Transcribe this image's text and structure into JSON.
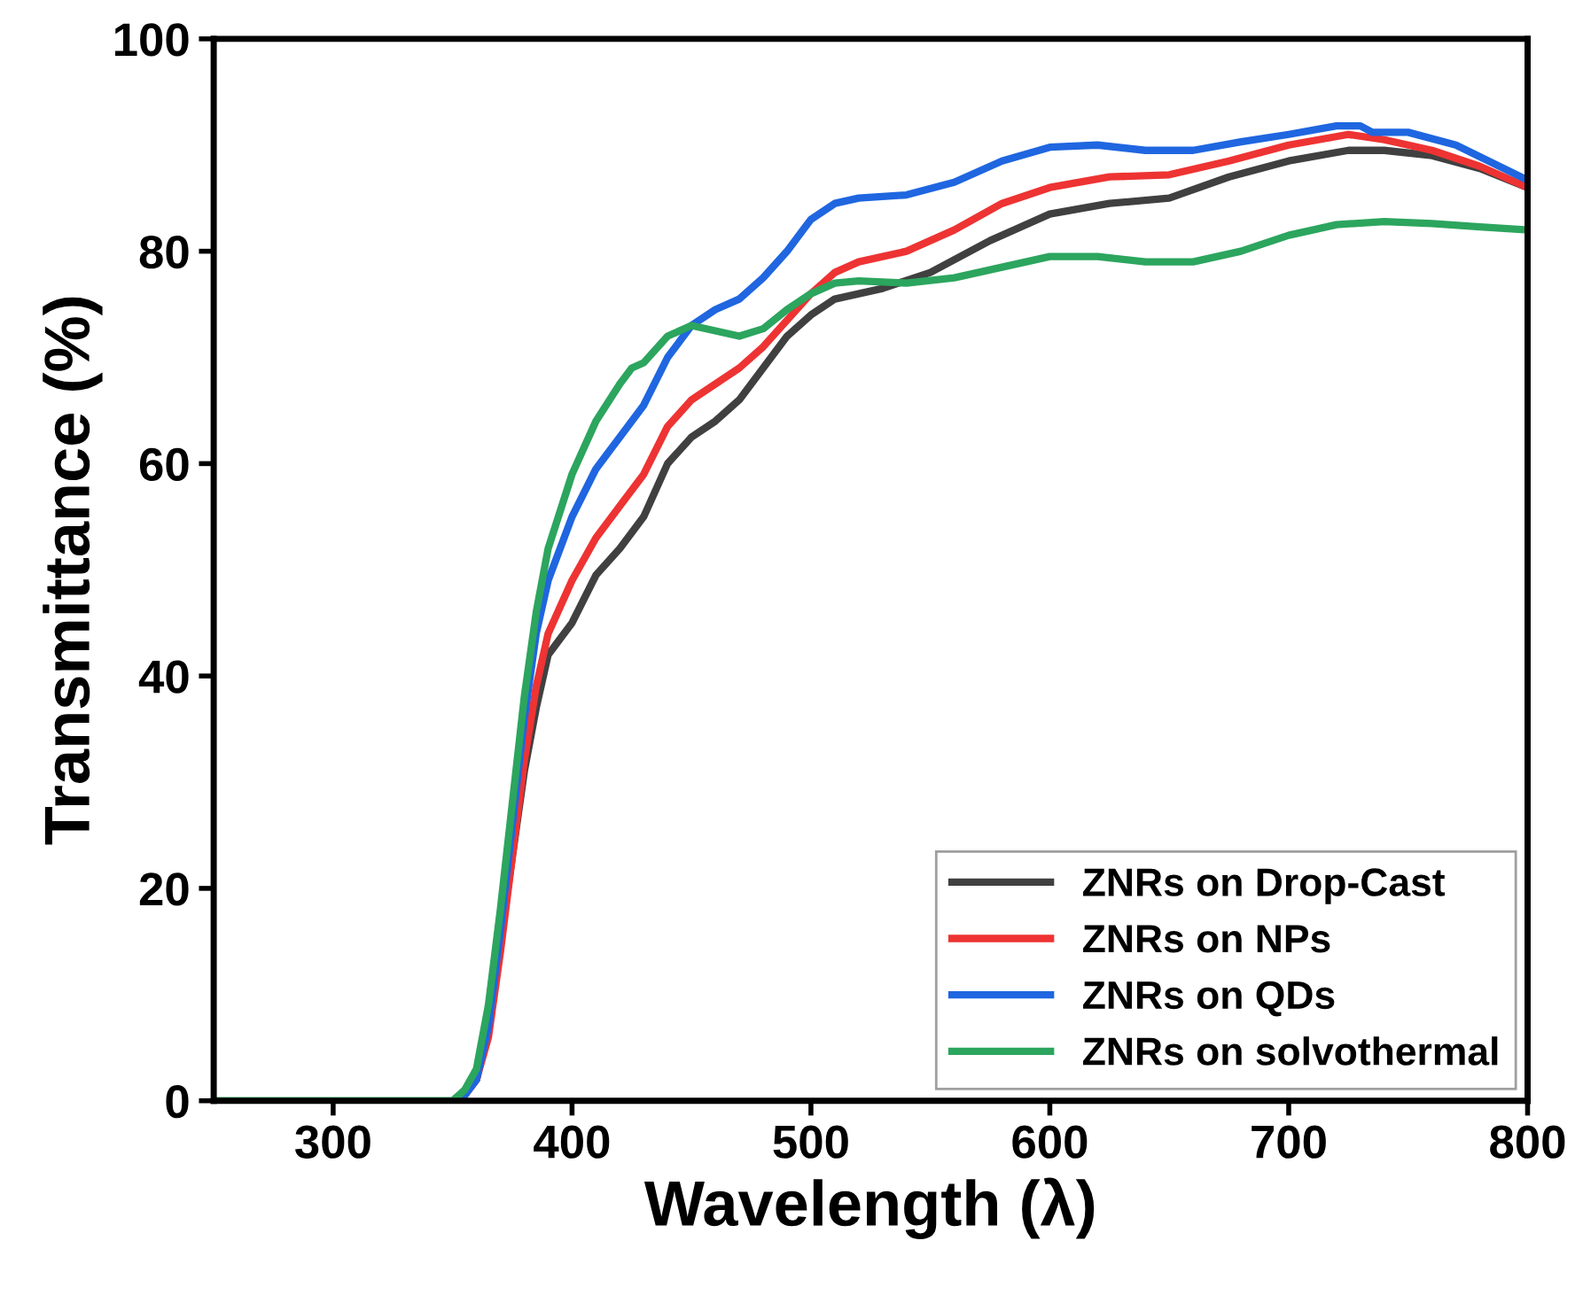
{
  "chart_data": {
    "type": "line",
    "xlabel": "Wavelength (λ)",
    "ylabel": "Transmittance (%)",
    "xlim": [
      250,
      800
    ],
    "ylim": [
      0,
      100
    ],
    "xticks": [
      300,
      400,
      500,
      600,
      700,
      800
    ],
    "yticks": [
      0,
      20,
      40,
      60,
      80,
      100
    ],
    "grid": false,
    "legend": "bottom right",
    "line_style": "solid",
    "marker": "none",
    "series": [
      {
        "name": "ZNRs on Drop-Cast",
        "color": "#404040",
        "x": [
          355,
          360,
          365,
          370,
          375,
          380,
          385,
          390,
          400,
          410,
          420,
          430,
          440,
          450,
          460,
          470,
          480,
          490,
          500,
          510,
          520,
          530,
          550,
          575,
          600,
          625,
          650,
          675,
          700,
          725,
          740,
          760,
          780,
          800
        ],
        "values": [
          0.5,
          2,
          7,
          15,
          23,
          31,
          37,
          42,
          45,
          49.5,
          52,
          55,
          60,
          62.5,
          64,
          66,
          69,
          72,
          74,
          75.5,
          76,
          76.5,
          78,
          81,
          83.5,
          84.5,
          85,
          87,
          88.5,
          89.5,
          89.5,
          89,
          87.8,
          86
        ]
      },
      {
        "name": "ZNRs on NPs",
        "color": "#ee3333",
        "x": [
          355,
          360,
          365,
          370,
          375,
          380,
          385,
          390,
          400,
          410,
          420,
          430,
          440,
          450,
          460,
          470,
          480,
          490,
          500,
          510,
          520,
          540,
          560,
          580,
          600,
          625,
          650,
          675,
          700,
          725,
          740,
          760,
          780,
          800
        ],
        "values": [
          0.5,
          2,
          6,
          14,
          23,
          32,
          39,
          44,
          49,
          53,
          56,
          59,
          63.5,
          66,
          67.5,
          69,
          71,
          73.5,
          76,
          78,
          79,
          80,
          82,
          84.5,
          86,
          87,
          87.2,
          88.5,
          90,
          91,
          90.5,
          89.5,
          88,
          86
        ]
      },
      {
        "name": "ZNRs on QDs",
        "color": "#1f66e0",
        "x": [
          355,
          360,
          365,
          370,
          375,
          380,
          385,
          390,
          400,
          410,
          420,
          430,
          440,
          450,
          460,
          470,
          480,
          490,
          500,
          510,
          520,
          540,
          560,
          580,
          600,
          620,
          640,
          660,
          680,
          700,
          720,
          730,
          735,
          750,
          770,
          800
        ],
        "values": [
          0.5,
          2,
          7,
          16,
          26,
          36,
          44,
          49,
          55,
          59.5,
          62.5,
          65.5,
          70,
          73,
          74.5,
          75.5,
          77.5,
          80,
          83,
          84.5,
          85,
          85.3,
          86.5,
          88.5,
          89.8,
          90,
          89.5,
          89.5,
          90.3,
          91,
          91.8,
          91.8,
          91.2,
          91.2,
          90,
          86.7
        ]
      },
      {
        "name": "ZNRs on solvothermal",
        "color": "#2ca55e",
        "x": [
          250,
          300,
          350,
          355,
          360,
          365,
          370,
          375,
          380,
          385,
          390,
          400,
          410,
          420,
          425,
          430,
          440,
          450,
          460,
          470,
          480,
          490,
          500,
          510,
          520,
          540,
          560,
          580,
          600,
          620,
          640,
          660,
          680,
          700,
          720,
          740,
          760,
          780,
          800
        ],
        "values": [
          0,
          0,
          0,
          1,
          3,
          9,
          18,
          28,
          38,
          46,
          52,
          59,
          64,
          67.5,
          69,
          69.5,
          72,
          73,
          72.5,
          72,
          72.7,
          74.5,
          76,
          77,
          77.2,
          77,
          77.5,
          78.5,
          79.5,
          79.5,
          79,
          79,
          80,
          81.5,
          82.5,
          82.8,
          82.6,
          82.3,
          82
        ]
      }
    ]
  }
}
